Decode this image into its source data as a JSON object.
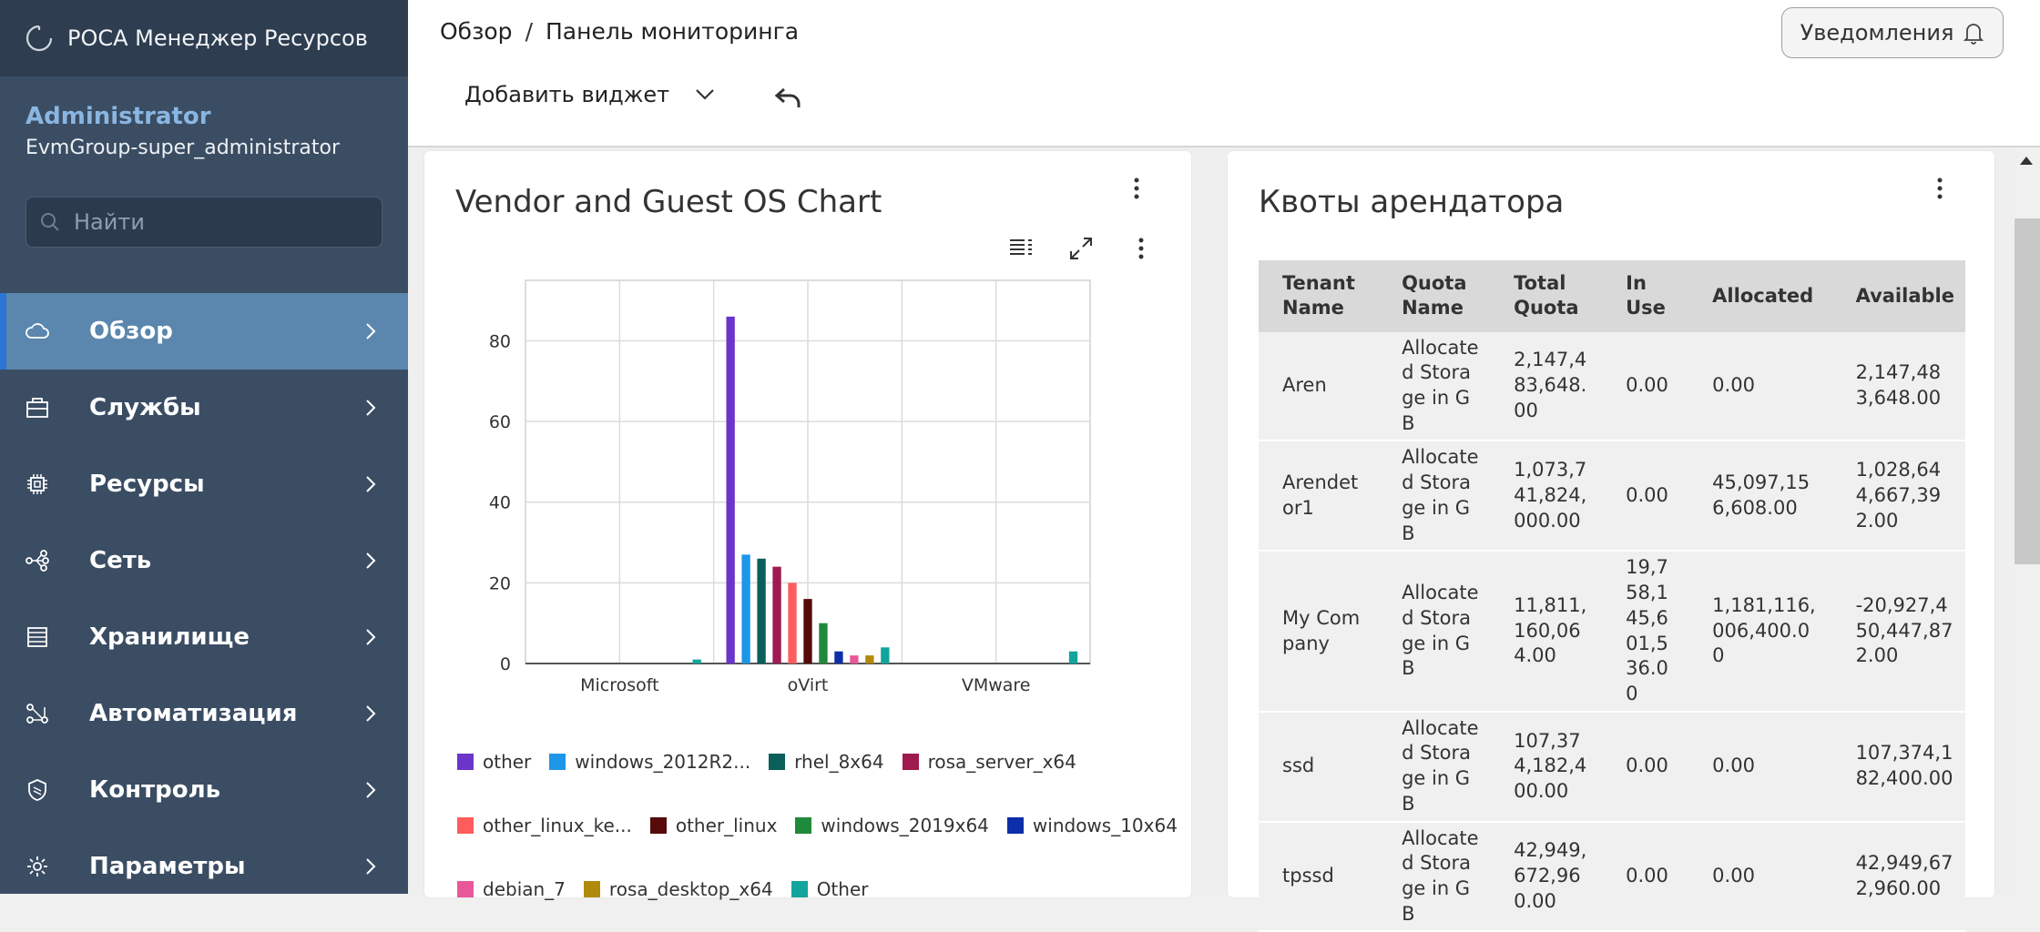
{
  "app": {
    "brand": "РОСА Менеджер Ресурсов"
  },
  "user": {
    "name": "Administrator",
    "group": "EvmGroup-super_administrator"
  },
  "search": {
    "placeholder": "Найти"
  },
  "nav": [
    {
      "label": "Обзор",
      "icon": "cloud-icon",
      "active": true
    },
    {
      "label": "Службы",
      "icon": "services-icon",
      "active": false
    },
    {
      "label": "Ресурсы",
      "icon": "chip-icon",
      "active": false
    },
    {
      "label": "Сеть",
      "icon": "network-icon",
      "active": false
    },
    {
      "label": "Хранилище",
      "icon": "storage-icon",
      "active": false
    },
    {
      "label": "Автоматизация",
      "icon": "automation-icon",
      "active": false
    },
    {
      "label": "Контроль",
      "icon": "shield-icon",
      "active": false
    },
    {
      "label": "Параметры",
      "icon": "gear-icon",
      "active": false
    }
  ],
  "breadcrumb": {
    "parent": "Обзор",
    "separator": "/",
    "current": "Панель мониторинга"
  },
  "header": {
    "notifications_label": "Уведомления",
    "add_widget_label": "Добавить виджет"
  },
  "widgets": {
    "vendor_chart": {
      "title": "Vendor and Guest OS Chart"
    },
    "quotas": {
      "title": "Квоты арендатора"
    }
  },
  "chart_data": {
    "type": "bar",
    "categories": [
      "Microsoft",
      "oVirt",
      "VMware"
    ],
    "ylim": [
      0,
      95
    ],
    "yticks": [
      0,
      20,
      40,
      60,
      80
    ],
    "grid": true,
    "legend_position": "bottom",
    "series": [
      {
        "name": "other",
        "color": "#6b35c9",
        "values": [
          0,
          86,
          0
        ]
      },
      {
        "name": "windows_2012R2...",
        "color": "#1e96e8",
        "values": [
          0,
          27,
          0
        ]
      },
      {
        "name": "rhel_8x64",
        "color": "#0b5f5b",
        "values": [
          0,
          26,
          0
        ]
      },
      {
        "name": "rosa_server_x64",
        "color": "#9e1a4f",
        "values": [
          0,
          24,
          0
        ]
      },
      {
        "name": "other_linux_ke...",
        "color": "#ff5d5d",
        "values": [
          0,
          20,
          0
        ]
      },
      {
        "name": "other_linux",
        "color": "#560a0a",
        "values": [
          0,
          16,
          0
        ]
      },
      {
        "name": "windows_2019x64",
        "color": "#208a3c",
        "values": [
          0,
          10,
          0
        ]
      },
      {
        "name": "windows_10x64",
        "color": "#0c2ea8",
        "values": [
          0,
          3,
          0
        ]
      },
      {
        "name": "debian_7",
        "color": "#e8579a",
        "values": [
          0,
          2,
          0
        ]
      },
      {
        "name": "rosa_desktop_x64",
        "color": "#b08a0a",
        "values": [
          0,
          2,
          0
        ]
      },
      {
        "name": "Other",
        "color": "#12a59b",
        "values": [
          1,
          4,
          3
        ]
      }
    ]
  },
  "quotas_table": {
    "headers": [
      "Tenant Name",
      "Quota Name",
      "Total Quota",
      "In Use",
      "Allocated",
      "Available"
    ],
    "rows": [
      [
        "Aren",
        "Allocated Storage in GB",
        "2,147,483,648.00",
        "0.00",
        "0.00",
        "2,147,483,648.00"
      ],
      [
        "Arendetor1",
        "Allocated Storage in GB",
        "1,073,741,824,000.00",
        "0.00",
        "45,097,156,608.00",
        "1,028,644,667,392.00"
      ],
      [
        "My Company",
        "Allocated Storage in GB",
        "11,811,160,064.00",
        "19,758,145,601,536.00",
        "1,181,116,006,400.00",
        "-20,927,450,447,872.00"
      ],
      [
        "ssd",
        "Allocated Storage in GB",
        "107,374,182,400.00",
        "0.00",
        "0.00",
        "107,374,182,400.00"
      ],
      [
        "tpssd",
        "Allocated Storage in GB",
        "42,949,672,960.00",
        "0.00",
        "0.00",
        "42,949,672,960.00"
      ]
    ]
  }
}
